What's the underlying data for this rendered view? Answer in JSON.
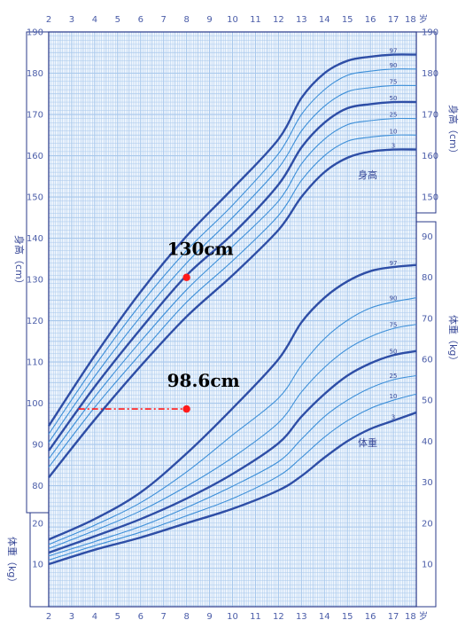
{
  "chart_data": {
    "type": "line",
    "title": "",
    "x_unit": "岁",
    "x_ticks": [
      2,
      3,
      4,
      5,
      6,
      7,
      8,
      9,
      10,
      11,
      12,
      13,
      14,
      15,
      16,
      17,
      18
    ],
    "xlim": [
      2,
      18
    ],
    "height_axis": {
      "label": "身高（cm）",
      "ticks": [
        80,
        90,
        100,
        110,
        120,
        130,
        140,
        150,
        160,
        170,
        180,
        190
      ],
      "ylim": [
        75,
        190
      ]
    },
    "weight_axis_right": {
      "label": "体重（kg）",
      "ticks": [
        10,
        20,
        30,
        40,
        50,
        60,
        70,
        80,
        90
      ],
      "ylim": [
        5,
        95
      ]
    },
    "weight_axis_left": {
      "label": "体重（kg）",
      "ticks": [
        10,
        20
      ],
      "ylim": [
        5,
        30
      ]
    },
    "percentiles": [
      "3",
      "10",
      "25",
      "50",
      "75",
      "90",
      "97"
    ],
    "bold_percentiles": [
      "3",
      "50",
      "97"
    ],
    "height_series_label": "身高",
    "weight_series_label": "体重",
    "height_series": [
      {
        "name": "3",
        "x": [
          2,
          4,
          6,
          8,
          10,
          12,
          13,
          14,
          15,
          16,
          17,
          18
        ],
        "y": [
          82,
          96,
          109,
          121,
          131,
          142,
          150,
          156,
          159.5,
          161,
          161.5,
          161.5
        ]
      },
      {
        "name": "10",
        "x": [
          2,
          4,
          6,
          8,
          10,
          12,
          13,
          14,
          15,
          16,
          17,
          18
        ],
        "y": [
          84.5,
          99,
          112,
          124.5,
          134.5,
          145.5,
          154,
          160,
          163.5,
          164.5,
          165,
          165
        ]
      },
      {
        "name": "25",
        "x": [
          2,
          4,
          6,
          8,
          10,
          12,
          13,
          14,
          15,
          16,
          17,
          18
        ],
        "y": [
          86.5,
          101.5,
          115,
          127.5,
          138,
          149,
          158,
          164,
          167.5,
          168.5,
          169,
          169
        ]
      },
      {
        "name": "50",
        "x": [
          2,
          4,
          6,
          8,
          10,
          12,
          13,
          14,
          15,
          16,
          17,
          18
        ],
        "y": [
          88.5,
          104,
          118,
          131,
          141,
          153,
          162,
          168,
          171.5,
          172.5,
          173,
          173
        ]
      },
      {
        "name": "75",
        "x": [
          2,
          4,
          6,
          8,
          10,
          12,
          13,
          14,
          15,
          16,
          17,
          18
        ],
        "y": [
          90.5,
          106.5,
          121,
          134,
          145,
          157,
          166,
          172,
          175.5,
          176.5,
          177,
          177
        ]
      },
      {
        "name": "90",
        "x": [
          2,
          4,
          6,
          8,
          10,
          12,
          13,
          14,
          15,
          16,
          17,
          18
        ],
        "y": [
          92.5,
          109,
          124,
          137,
          148,
          160.5,
          170,
          176,
          179.5,
          180.5,
          181,
          181
        ]
      },
      {
        "name": "97",
        "x": [
          2,
          4,
          6,
          8,
          10,
          12,
          13,
          14,
          15,
          16,
          17,
          18
        ],
        "y": [
          94.5,
          111.5,
          127,
          140.5,
          152,
          164,
          174,
          180,
          183,
          184,
          184.5,
          184.5
        ]
      }
    ],
    "weight_series": [
      {
        "name": "3",
        "x": [
          2,
          4,
          6,
          8,
          10,
          12,
          13,
          14,
          15,
          16,
          17,
          18
        ],
        "y": [
          10,
          13.5,
          16.5,
          20,
          23.5,
          28,
          31.5,
          36,
          40,
          43,
          45,
          47
        ]
      },
      {
        "name": "10",
        "x": [
          2,
          4,
          6,
          8,
          10,
          12,
          13,
          14,
          15,
          16,
          17,
          18
        ],
        "y": [
          11,
          14.5,
          17.8,
          21.8,
          26,
          31.5,
          36,
          41,
          45,
          48,
          50,
          51.5
        ]
      },
      {
        "name": "25",
        "x": [
          2,
          4,
          6,
          8,
          10,
          12,
          13,
          14,
          15,
          16,
          17,
          18
        ],
        "y": [
          12,
          15.5,
          19.2,
          23.8,
          29,
          35,
          40.5,
          46,
          50,
          53,
          55,
          56
        ]
      },
      {
        "name": "50",
        "x": [
          2,
          4,
          6,
          8,
          10,
          12,
          13,
          14,
          15,
          16,
          17,
          18
        ],
        "y": [
          12.8,
          16.8,
          21,
          26,
          32,
          39.5,
          46,
          51.5,
          56,
          59,
          61,
          62
        ]
      },
      {
        "name": "75",
        "x": [
          2,
          4,
          6,
          8,
          10,
          12,
          13,
          14,
          15,
          16,
          17,
          18
        ],
        "y": [
          13.8,
          18.2,
          23,
          29,
          36,
          44.5,
          52,
          58,
          62.5,
          65.5,
          67.5,
          68.5
        ]
      },
      {
        "name": "90",
        "x": [
          2,
          4,
          6,
          8,
          10,
          12,
          13,
          14,
          15,
          16,
          17,
          18
        ],
        "y": [
          14.8,
          19.5,
          25,
          32.5,
          41.5,
          50.5,
          58.5,
          65,
          69.5,
          72.5,
          74,
          75
        ]
      },
      {
        "name": "97",
        "x": [
          2,
          4,
          6,
          8,
          10,
          12,
          13,
          14,
          15,
          16,
          17,
          18
        ],
        "y": [
          16,
          21,
          27.5,
          37,
          48,
          60,
          69,
          75,
          79,
          81.5,
          82.5,
          83
        ]
      }
    ],
    "annotations": [
      {
        "label": "130cm",
        "x": 8,
        "y": 130.5,
        "axis": "height"
      },
      {
        "label": "98.6cm",
        "x": 8,
        "y": 98.6,
        "axis": "height",
        "dashed_to_x": 3.3
      }
    ],
    "colors": {
      "grid": "#a8c8ec",
      "frame": "#2a3a8a",
      "curve": "#2e4ea6",
      "curve_thin": "#3d8fd8",
      "marker": "#ff1a1a"
    }
  }
}
